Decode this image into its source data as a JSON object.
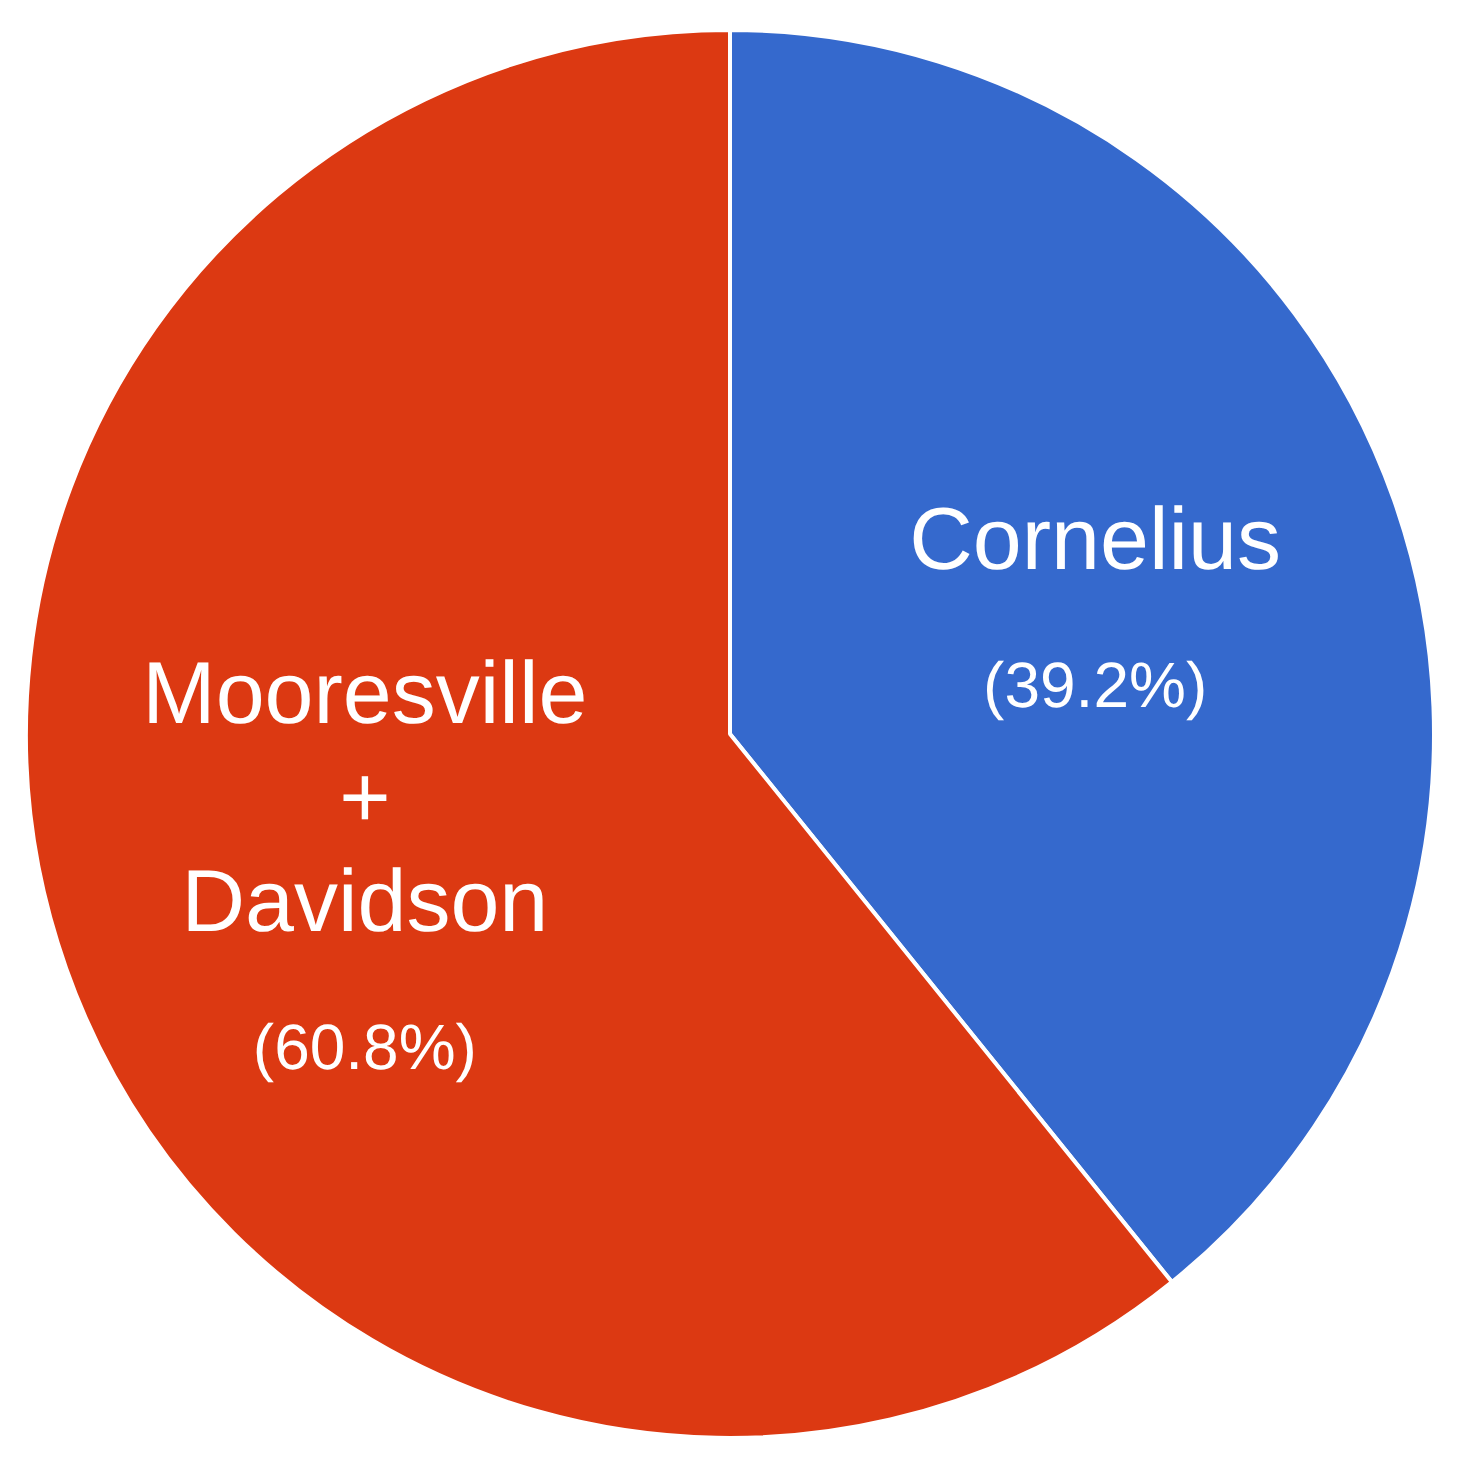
{
  "chart_data": {
    "type": "pie",
    "categories": [
      "Cornelius",
      "Mooresville + Davidson"
    ],
    "values": [
      39.2,
      60.8
    ],
    "colors": [
      "#3569cd",
      "#dc3912"
    ],
    "value_labels": [
      "(39.2%)",
      "(60.8%)"
    ]
  }
}
